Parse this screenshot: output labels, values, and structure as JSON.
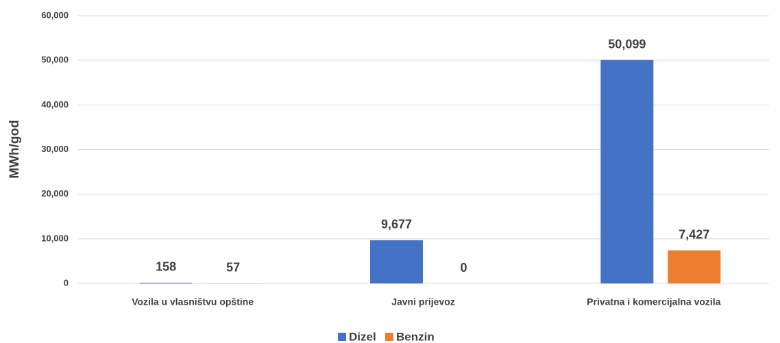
{
  "chart_data": {
    "type": "bar",
    "categories": [
      "Vozila u vlasništvu opštine",
      "Javni prijevoz",
      "Privatna i komercijalna vozila"
    ],
    "series": [
      {
        "name": "Dizel",
        "color": "#4472c4",
        "values": [
          158,
          9677,
          50099
        ],
        "value_labels": [
          "158",
          "9,677",
          "50,099"
        ]
      },
      {
        "name": "Benzin",
        "color": "#ed7d31",
        "values": [
          57,
          0,
          7427
        ],
        "value_labels": [
          "57",
          "0",
          "7,427"
        ]
      }
    ],
    "ylabel": "MWh/god",
    "ylim": [
      0,
      60000
    ],
    "yticks": [
      0,
      {
        "value": 10000,
        "label": "10,000"
      },
      {
        "value": 20000,
        "label": "20,000"
      },
      {
        "value": 30000,
        "label": "30,000"
      },
      {
        "value": 40000,
        "label": "40,000"
      },
      {
        "value": 50000,
        "label": "50,000"
      },
      {
        "value": 60000,
        "label": "60,000"
      }
    ],
    "grid": true,
    "legend": "bottom"
  }
}
